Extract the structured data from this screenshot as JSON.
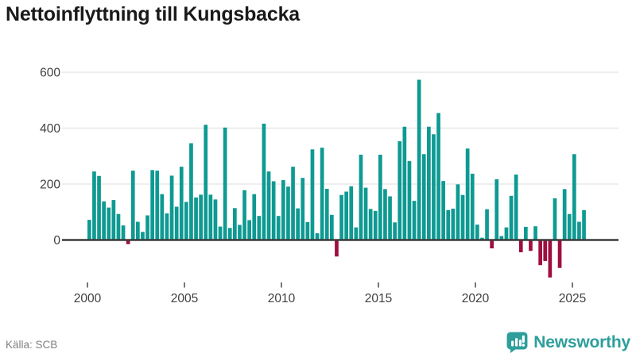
{
  "title": "Nettoinflyttning till Kungsbacka",
  "source": "Källa: SCB",
  "logo": {
    "text": "Newsworthy",
    "icon": "newsworthy-bubble-bars-icon"
  },
  "colors": {
    "positive_bar": "#0e9a92",
    "negative_bar": "#9e0f3f",
    "axis_line": "#3b3b3b",
    "gridline": "#e8e8e8",
    "tick_mark": "#555555",
    "axis_label": "#3f3f3f",
    "title_text": "#1a1a1a",
    "source_text": "#818181",
    "logo_teal": "#2e9e9c"
  },
  "chart_data": {
    "type": "bar",
    "title": "Nettoinflyttning till Kungsbacka",
    "frequency": "quarterly",
    "x_start": "2000-Q1",
    "x_end": "2025-Q3",
    "x_tick_labels": [
      "2000",
      "2005",
      "2010",
      "2015",
      "2020",
      "2025"
    ],
    "y_tick_labels": [
      "0",
      "200",
      "400",
      "600"
    ],
    "y_ticks": [
      0,
      200,
      400,
      600
    ],
    "ylim": [
      -160,
      640
    ],
    "grid": "horizontal",
    "legend": "none",
    "values": [
      72,
      245,
      229,
      138,
      116,
      143,
      93,
      52,
      -15,
      248,
      65,
      29,
      88,
      250,
      248,
      164,
      95,
      230,
      119,
      262,
      136,
      346,
      152,
      162,
      412,
      162,
      145,
      48,
      402,
      43,
      114,
      54,
      178,
      71,
      164,
      86,
      416,
      245,
      210,
      86,
      214,
      191,
      262,
      113,
      222,
      64,
      324,
      24,
      330,
      183,
      90,
      -59,
      161,
      173,
      192,
      45,
      305,
      187,
      111,
      104,
      305,
      182,
      156,
      63,
      353,
      405,
      282,
      140,
      573,
      307,
      405,
      378,
      454,
      211,
      107,
      112,
      199,
      161,
      327,
      237,
      55,
      8,
      110,
      -30,
      217,
      14,
      45,
      158,
      234,
      -44,
      47,
      -39,
      49,
      -90,
      -75,
      -134,
      149,
      -100,
      182,
      93,
      307,
      65,
      107
    ]
  }
}
